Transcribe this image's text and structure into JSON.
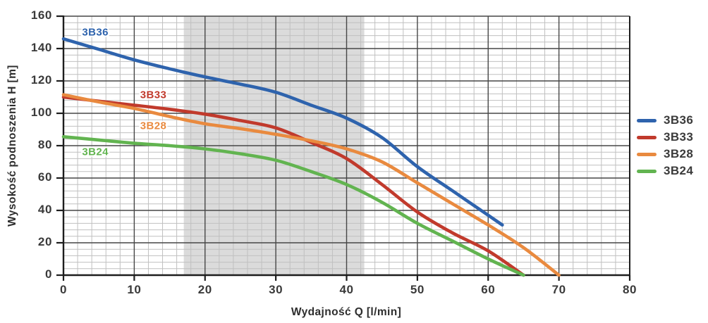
{
  "chart_data": {
    "type": "line",
    "title": "",
    "xlabel": "Wydajność Q [l/min]",
    "ylabel": "Wysokość podnoszenia H [m]",
    "xlim": [
      0,
      80
    ],
    "ylim": [
      0,
      160
    ],
    "x_ticks": [
      0,
      10,
      20,
      30,
      40,
      50,
      60,
      70,
      80
    ],
    "y_ticks": [
      0,
      20,
      40,
      60,
      80,
      100,
      120,
      140,
      160
    ],
    "x_minor_step": 2,
    "y_minor_step": 4,
    "grid": "major+minor",
    "legend_position": "right-outside",
    "shaded_band": {
      "x_from": 17,
      "x_to": 42.5
    },
    "series": [
      {
        "name": "3B36",
        "color": "#2e63ad",
        "points": [
          [
            0,
            146
          ],
          [
            5,
            139.5
          ],
          [
            10,
            133
          ],
          [
            15,
            127.5
          ],
          [
            20,
            122.5
          ],
          [
            25,
            118
          ],
          [
            30,
            113
          ],
          [
            35,
            105
          ],
          [
            40,
            97
          ],
          [
            45,
            85
          ],
          [
            50,
            67
          ],
          [
            55,
            52
          ],
          [
            60,
            37
          ],
          [
            62,
            31
          ]
        ]
      },
      {
        "name": "3B33",
        "color": "#c13a2c",
        "points": [
          [
            0,
            110
          ],
          [
            5,
            107.5
          ],
          [
            10,
            105
          ],
          [
            15,
            102.5
          ],
          [
            20,
            99.5
          ],
          [
            25,
            95.5
          ],
          [
            30,
            91
          ],
          [
            35,
            82
          ],
          [
            40,
            72
          ],
          [
            45,
            56
          ],
          [
            50,
            39
          ],
          [
            55,
            26
          ],
          [
            60,
            15
          ],
          [
            65,
            0
          ]
        ]
      },
      {
        "name": "3B28",
        "color": "#e98a3f",
        "points": [
          [
            0,
            111.5
          ],
          [
            5,
            107
          ],
          [
            10,
            103
          ],
          [
            15,
            98
          ],
          [
            20,
            93.5
          ],
          [
            25,
            90.5
          ],
          [
            30,
            87
          ],
          [
            35,
            83
          ],
          [
            40,
            78
          ],
          [
            45,
            70
          ],
          [
            50,
            57
          ],
          [
            55,
            44
          ],
          [
            60,
            31
          ],
          [
            65,
            17
          ],
          [
            70,
            0
          ]
        ]
      },
      {
        "name": "3B24",
        "color": "#62b450",
        "points": [
          [
            0,
            85.5
          ],
          [
            5,
            83.5
          ],
          [
            10,
            81.5
          ],
          [
            15,
            80
          ],
          [
            20,
            78
          ],
          [
            25,
            75
          ],
          [
            30,
            71
          ],
          [
            35,
            64
          ],
          [
            40,
            56
          ],
          [
            45,
            45
          ],
          [
            50,
            32
          ],
          [
            55,
            21
          ],
          [
            60,
            10
          ],
          [
            65,
            0
          ]
        ]
      }
    ],
    "curve_labels": [
      {
        "text": "3B36",
        "color": "#2e63ad",
        "q": 4.5,
        "h": 150
      },
      {
        "text": "3B33",
        "color": "#c13a2c",
        "q": 12.7,
        "h": 111.5
      },
      {
        "text": "3B28",
        "color": "#e98a3f",
        "q": 12.7,
        "h": 92
      },
      {
        "text": "3B24",
        "color": "#62b450",
        "q": 4.5,
        "h": 76
      }
    ]
  },
  "legend": {
    "items": [
      {
        "label": "3B36",
        "color": "#2e63ad"
      },
      {
        "label": "3B33",
        "color": "#c13a2c"
      },
      {
        "label": "3B28",
        "color": "#e98a3f"
      },
      {
        "label": "3B24",
        "color": "#62b450"
      }
    ]
  },
  "colors": {
    "background": "#ffffff",
    "band": "#dbdbdb",
    "grid_major": "#474747",
    "grid_minor": "#c0c0c0",
    "axis": "#1d1d1d",
    "tick_text": "#3a3a3a",
    "title_text": "#2d2d2d"
  }
}
